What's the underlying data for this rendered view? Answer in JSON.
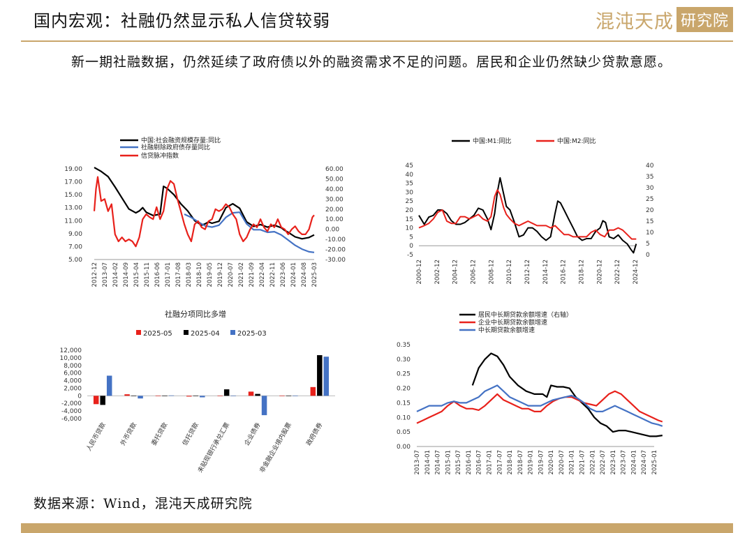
{
  "header": {
    "title": "国内宏观：社融仍然显示私人信贷较弱",
    "logo_text": "混沌天成",
    "logo_badge": "研究院"
  },
  "paragraph": "新一期社融数据，仍然延续了政府债以外的融资需求不足的问题。居民和企业仍然缺少贷款意愿。",
  "source": "数据来源：Wind，混沌天成研究院",
  "colors": {
    "black": "#000000",
    "red": "#e8211b",
    "blue": "#4472c4",
    "gold": "#c9a66b"
  },
  "chart_data": [
    {
      "type": "line",
      "legend": [
        "中国:社会融资规模存量:同比",
        "社融剔除政府债存量同比",
        "信贷脉冲指数"
      ],
      "x_ticks": [
        "2012-12",
        "2013-07",
        "2014-02",
        "2014-09",
        "2015-04",
        "2015-11",
        "2016-06",
        "2017-01",
        "2017-08",
        "2018-03",
        "2018-10",
        "2019-05",
        "2019-12",
        "2020-07",
        "2021-02",
        "2021-09",
        "2022-04",
        "2022-11",
        "2023-06",
        "2024-01",
        "2024-08",
        "2025-03"
      ],
      "y_left_ticks": [
        "5.00",
        "7.00",
        "9.00",
        "11.00",
        "13.00",
        "15.00",
        "17.00",
        "19.00"
      ],
      "y_right_ticks": [
        "-30.00",
        "-20.00",
        "-10.00",
        "0.00",
        "10.00",
        "20.00",
        "30.00",
        "40.00",
        "50.00",
        "60.00"
      ],
      "ylim_left": [
        5,
        19
      ],
      "ylim_right": [
        -30,
        60
      ],
      "series": [
        {
          "name": "中国:社会融资规模存量:同比",
          "axis": "left",
          "color": "#000000",
          "x": [
            0,
            4,
            8,
            12,
            16,
            20,
            24,
            26,
            28,
            30,
            34,
            38,
            40,
            42,
            46,
            50,
            54,
            58,
            62,
            64,
            66,
            68,
            72,
            76,
            80,
            84,
            88,
            92,
            96,
            100,
            104,
            108,
            110,
            112,
            116,
            120,
            124,
            127
          ],
          "y": [
            19.2,
            18.6,
            17.8,
            16.2,
            14.5,
            12.8,
            12.2,
            12.5,
            13.0,
            12.3,
            11.8,
            12.0,
            16.3,
            16.0,
            15.0,
            13.6,
            12.5,
            11.0,
            10.3,
            10.5,
            10.8,
            10.6,
            10.9,
            13.0,
            13.6,
            12.9,
            10.8,
            10.1,
            10.4,
            10.0,
            10.3,
            9.9,
            9.5,
            9.2,
            8.5,
            8.2,
            8.4,
            8.8
          ]
        },
        {
          "name": "社融剔除政府债存量同比",
          "axis": "left",
          "color": "#4472c4",
          "x": [
            52,
            56,
            60,
            64,
            68,
            72,
            76,
            80,
            84,
            88,
            92,
            96,
            100,
            104,
            108,
            112,
            116,
            120,
            124,
            127
          ],
          "y": [
            12.0,
            11.5,
            10.8,
            10.2,
            10.0,
            10.3,
            11.5,
            12.2,
            12.3,
            10.5,
            9.6,
            9.6,
            9.2,
            9.3,
            8.8,
            8.0,
            7.2,
            6.6,
            6.2,
            6.1
          ]
        },
        {
          "name": "信贷脉冲指数",
          "axis": "right",
          "color": "#e8211b",
          "x": [
            0,
            1,
            2,
            4,
            6,
            8,
            10,
            12,
            14,
            16,
            18,
            20,
            22,
            24,
            26,
            28,
            30,
            32,
            34,
            36,
            38,
            40,
            42,
            44,
            46,
            48,
            50,
            52,
            54,
            56,
            58,
            60,
            62,
            64,
            66,
            68,
            70,
            72,
            74,
            76,
            78,
            80,
            82,
            84,
            86,
            88,
            90,
            92,
            94,
            96,
            98,
            100,
            102,
            104,
            106,
            108,
            110,
            112,
            114,
            116,
            118,
            120,
            122,
            124,
            126,
            127
          ],
          "y": [
            18,
            40,
            52,
            28,
            30,
            18,
            25,
            -5,
            -12,
            -8,
            -12,
            -10,
            -12,
            -17,
            -8,
            10,
            15,
            12,
            10,
            22,
            10,
            18,
            40,
            48,
            45,
            30,
            18,
            5,
            -5,
            -12,
            5,
            8,
            2,
            0,
            8,
            10,
            20,
            18,
            20,
            25,
            22,
            15,
            10,
            -5,
            -12,
            -8,
            0,
            5,
            2,
            10,
            2,
            -2,
            5,
            2,
            10,
            2,
            0,
            -5,
            0,
            3,
            -2,
            -5,
            -5,
            0,
            12,
            14
          ]
        }
      ]
    },
    {
      "type": "line",
      "legend": [
        "中国:M1:同比",
        "中国:M2:同比"
      ],
      "x_ticks": [
        "2000-12",
        "2002-12",
        "2004-12",
        "2006-12",
        "2008-12",
        "2010-12",
        "2012-12",
        "2014-12",
        "2016-12",
        "2018-12",
        "2020-12",
        "2022-12",
        "2024-12"
      ],
      "y_left_ticks": [
        "-5",
        "0",
        "5",
        "10",
        "15",
        "20",
        "25",
        "30",
        "35",
        "40",
        "45"
      ],
      "y_right_ticks": [
        "0",
        "5",
        "10",
        "15",
        "20",
        "25",
        "30",
        "35",
        "40"
      ],
      "ylim_left": [
        -5,
        45
      ],
      "ylim_right": [
        0,
        40
      ],
      "series": [
        {
          "name": "中国:M1:同比",
          "axis": "left",
          "color": "#000000",
          "x": [
            2000.9,
            2001.5,
            2002,
            2002.5,
            2003,
            2003.5,
            2004,
            2004.5,
            2005,
            2005.5,
            2006,
            2006.5,
            2007,
            2007.5,
            2008,
            2008.5,
            2008.9,
            2009.3,
            2009.6,
            2009.9,
            2010.3,
            2010.6,
            2011,
            2011.5,
            2012,
            2012.5,
            2013,
            2013.5,
            2014,
            2014.5,
            2015,
            2015.5,
            2016,
            2016.3,
            2016.6,
            2017,
            2017.5,
            2018,
            2018.5,
            2019,
            2019.5,
            2020,
            2020.5,
            2021,
            2021.3,
            2021.6,
            2022,
            2022.5,
            2023,
            2023.5,
            2024,
            2024.4,
            2024.7,
            2025
          ],
          "y": [
            17,
            12,
            16,
            17,
            20,
            20,
            18,
            14,
            12,
            12,
            13,
            15,
            17,
            21,
            20,
            15,
            9,
            18,
            30,
            38,
            29,
            22,
            20,
            13,
            5,
            6,
            10,
            10,
            8,
            5,
            3,
            5,
            18,
            25,
            24,
            20,
            15,
            10,
            5,
            3,
            4,
            4,
            8,
            10,
            14,
            13,
            5,
            4,
            6,
            3,
            1,
            -2,
            -4,
            1
          ]
        },
        {
          "name": "中国:M2:同比",
          "axis": "right",
          "color": "#e8211b",
          "x": [
            2000.9,
            2001.5,
            2002,
            2002.5,
            2003,
            2003.5,
            2004,
            2004.5,
            2005,
            2005.5,
            2006,
            2006.5,
            2007,
            2007.5,
            2008,
            2008.5,
            2008.9,
            2009.3,
            2009.6,
            2009.9,
            2010.3,
            2010.6,
            2011,
            2011.5,
            2012,
            2012.5,
            2013,
            2013.5,
            2014,
            2014.5,
            2015,
            2015.5,
            2016,
            2016.5,
            2017,
            2017.5,
            2018,
            2018.5,
            2019,
            2019.5,
            2020,
            2020.5,
            2021,
            2021.5,
            2022,
            2022.5,
            2023,
            2023.5,
            2024,
            2024.5,
            2025
          ],
          "y": [
            12,
            13,
            14,
            16,
            19,
            20,
            15,
            14,
            14,
            17,
            17,
            16,
            17,
            18,
            16,
            15,
            17,
            26,
            29,
            27,
            21,
            18,
            16,
            14,
            13,
            14,
            15,
            14,
            13,
            13,
            13,
            12,
            13,
            11,
            9,
            9,
            8,
            8,
            8,
            8,
            10,
            11,
            9,
            8,
            11,
            11,
            12,
            11,
            9,
            7,
            7
          ]
        }
      ]
    },
    {
      "type": "bar",
      "title": "社融分项同比多增",
      "legend": [
        "2025-05",
        "2025-04",
        "2025-03"
      ],
      "categories": [
        "人民币贷款",
        "外币贷款",
        "委托贷款",
        "信托贷款",
        "未贴现银行承兑汇票",
        "企业债券",
        "非金融企业境内股票",
        "政府债券"
      ],
      "y_ticks": [
        "-6,000",
        "-4,000",
        "-2,000",
        "0",
        "2,000",
        "4,000",
        "6,000",
        "8,000",
        "10,000",
        "12,000"
      ],
      "ylim": [
        -6000,
        12000
      ],
      "series": [
        {
          "name": "2025-05",
          "color": "#e8211b",
          "values": [
            -2200,
            400,
            -100,
            -200,
            -100,
            1100,
            -100,
            2300
          ]
        },
        {
          "name": "2025-04",
          "color": "#000000",
          "values": [
            -2400,
            0,
            0,
            0,
            1700,
            500,
            0,
            10700
          ]
        },
        {
          "name": "2025-03",
          "color": "#4472c4",
          "values": [
            5300,
            -700,
            100,
            -400,
            0,
            -5100,
            0,
            10300
          ]
        }
      ]
    },
    {
      "type": "line",
      "legend": [
        "居民中长期贷款余额增速（右轴）",
        "企业中长期贷款余额增速",
        "中长期贷款余额增速"
      ],
      "x_ticks": [
        "2013-07",
        "2014-01",
        "2014-07",
        "2015-01",
        "2015-07",
        "2016-01",
        "2016-07",
        "2017-01",
        "2017-07",
        "2018-01",
        "2018-07",
        "2019-01",
        "2019-07",
        "2020-01",
        "2020-07",
        "2021-01",
        "2021-07",
        "2022-01",
        "2022-07",
        "2023-01",
        "2023-07",
        "2024-01",
        "2024-07",
        "2025-01"
      ],
      "y_ticks": [
        "0.00",
        "0.05",
        "0.10",
        "0.15",
        "0.20",
        "0.25",
        "0.30",
        "0.35"
      ],
      "ylim": [
        0,
        0.35
      ],
      "series": [
        {
          "name": "居民中长期贷款余额增速（右轴）",
          "color": "#000000",
          "x": [
            2016.2,
            2016.5,
            2016.8,
            2017.1,
            2017.4,
            2017.7,
            2018,
            2018.4,
            2018.8,
            2019.2,
            2019.6,
            2019.8,
            2020,
            2020.3,
            2020.6,
            2020.9,
            2021.2,
            2021.5,
            2021.8,
            2022.1,
            2022.4,
            2022.7,
            2023,
            2023.3,
            2023.6,
            2023.9,
            2024.2,
            2024.5,
            2024.8,
            2025.1,
            2025.4
          ],
          "y": [
            0.21,
            0.27,
            0.3,
            0.32,
            0.31,
            0.28,
            0.24,
            0.21,
            0.19,
            0.18,
            0.18,
            0.17,
            0.21,
            0.205,
            0.205,
            0.2,
            0.17,
            0.15,
            0.13,
            0.1,
            0.08,
            0.07,
            0.05,
            0.055,
            0.055,
            0.05,
            0.045,
            0.04,
            0.035,
            0.035,
            0.038
          ]
        },
        {
          "name": "企业中长期贷款余额增速",
          "color": "#e8211b",
          "x": [
            2013.5,
            2013.8,
            2014.1,
            2014.4,
            2014.7,
            2015,
            2015.3,
            2015.6,
            2015.9,
            2016.2,
            2016.5,
            2016.8,
            2017.1,
            2017.4,
            2017.7,
            2018,
            2018.3,
            2018.6,
            2018.9,
            2019.2,
            2019.5,
            2019.8,
            2020.1,
            2020.4,
            2020.7,
            2021,
            2021.3,
            2021.6,
            2021.9,
            2022.2,
            2022.5,
            2022.8,
            2023.1,
            2023.4,
            2023.7,
            2024,
            2024.3,
            2024.6,
            2024.9,
            2025.2,
            2025.4
          ],
          "y": [
            0.08,
            0.09,
            0.1,
            0.11,
            0.12,
            0.14,
            0.155,
            0.14,
            0.13,
            0.13,
            0.125,
            0.14,
            0.16,
            0.18,
            0.16,
            0.15,
            0.14,
            0.13,
            0.13,
            0.12,
            0.12,
            0.14,
            0.155,
            0.165,
            0.17,
            0.17,
            0.16,
            0.15,
            0.145,
            0.14,
            0.16,
            0.18,
            0.19,
            0.18,
            0.16,
            0.14,
            0.12,
            0.11,
            0.1,
            0.09,
            0.085
          ]
        },
        {
          "name": "中长期贷款余额增速",
          "color": "#4472c4",
          "x": [
            2013.5,
            2013.8,
            2014.1,
            2014.4,
            2014.7,
            2015,
            2015.3,
            2015.6,
            2015.9,
            2016.2,
            2016.5,
            2016.8,
            2017.1,
            2017.4,
            2017.7,
            2018,
            2018.3,
            2018.6,
            2018.9,
            2019.2,
            2019.5,
            2019.8,
            2020.1,
            2020.4,
            2020.7,
            2021,
            2021.3,
            2021.6,
            2021.9,
            2022.2,
            2022.5,
            2022.8,
            2023.1,
            2023.4,
            2023.7,
            2024,
            2024.3,
            2024.6,
            2024.9,
            2025.2,
            2025.4
          ],
          "y": [
            0.12,
            0.13,
            0.14,
            0.14,
            0.14,
            0.15,
            0.155,
            0.15,
            0.15,
            0.16,
            0.17,
            0.19,
            0.2,
            0.21,
            0.19,
            0.17,
            0.16,
            0.15,
            0.14,
            0.14,
            0.14,
            0.15,
            0.16,
            0.165,
            0.17,
            0.175,
            0.165,
            0.15,
            0.13,
            0.12,
            0.12,
            0.13,
            0.14,
            0.13,
            0.12,
            0.11,
            0.1,
            0.09,
            0.08,
            0.075,
            0.07
          ]
        }
      ]
    }
  ]
}
